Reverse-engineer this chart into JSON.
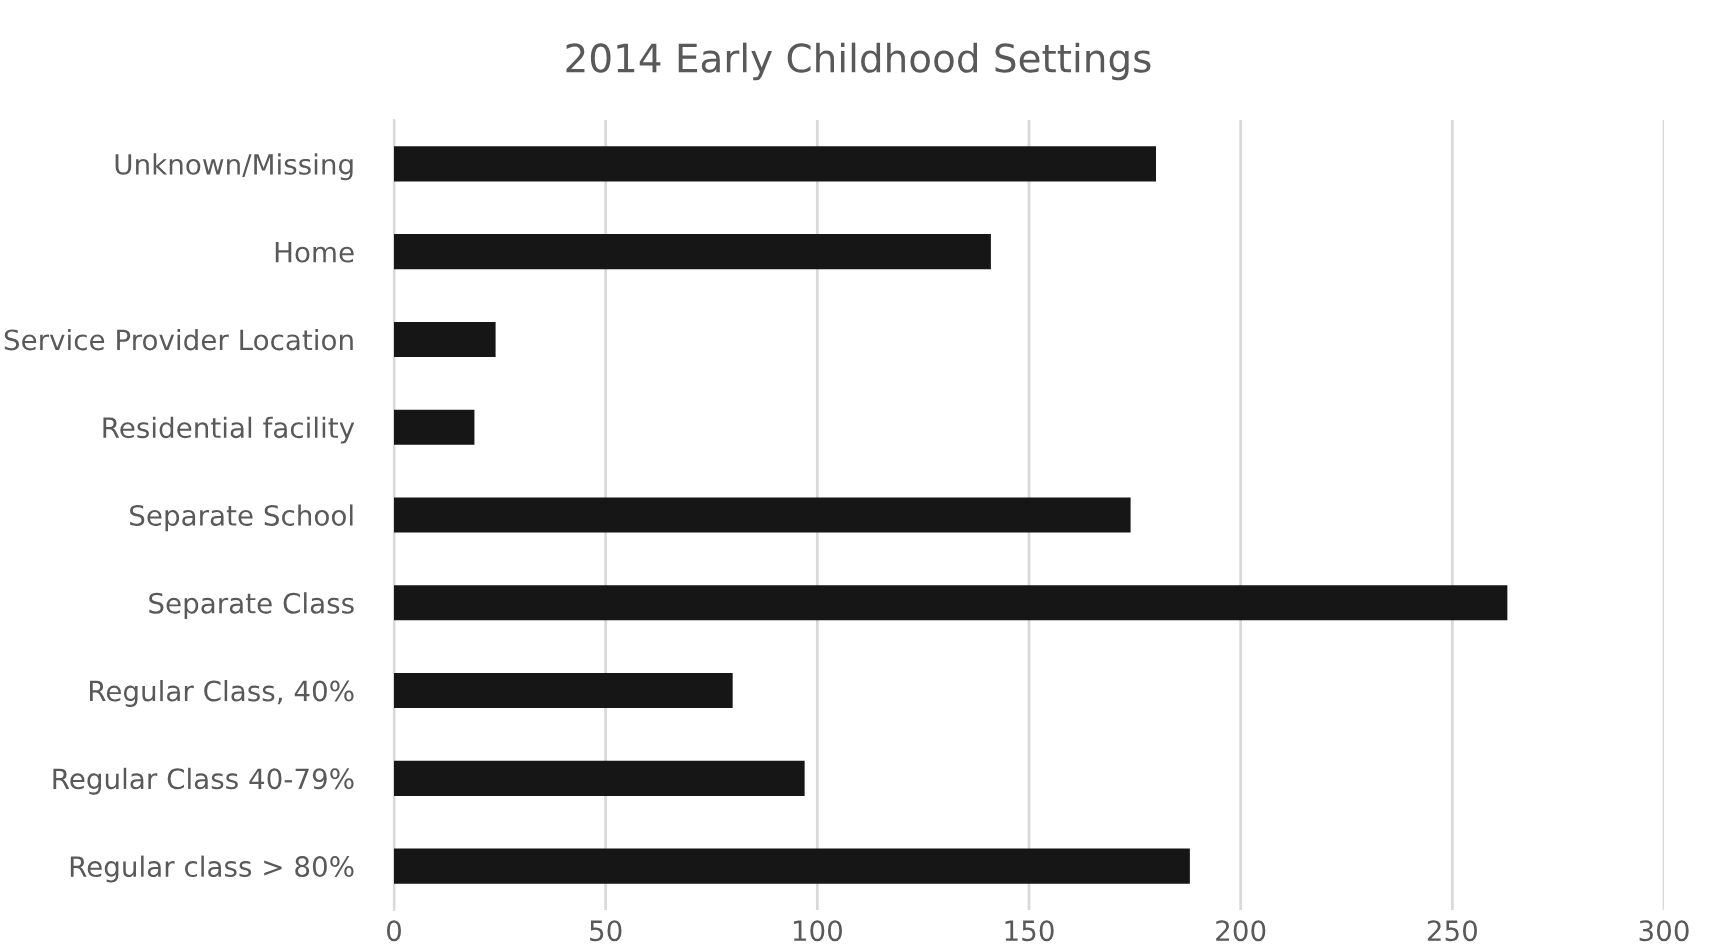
{
  "chart_data": {
    "type": "bar",
    "orientation": "horizontal",
    "title": "2014 Early Childhood Settings",
    "categories": [
      "Unknown/Missing",
      "Home",
      "Service Provider Location",
      "Residential facility",
      "Separate School",
      "Separate Class",
      "Regular Class, 40%",
      "Regular Class 40-79%",
      "Regular class > 80%"
    ],
    "values": [
      180,
      141,
      24,
      19,
      174,
      263,
      80,
      97,
      188
    ],
    "color": "#161616",
    "xlim": [
      0,
      300
    ],
    "xticks": [
      0,
      50,
      100,
      150,
      200,
      250,
      300
    ],
    "grid": "x",
    "legend": false
  }
}
